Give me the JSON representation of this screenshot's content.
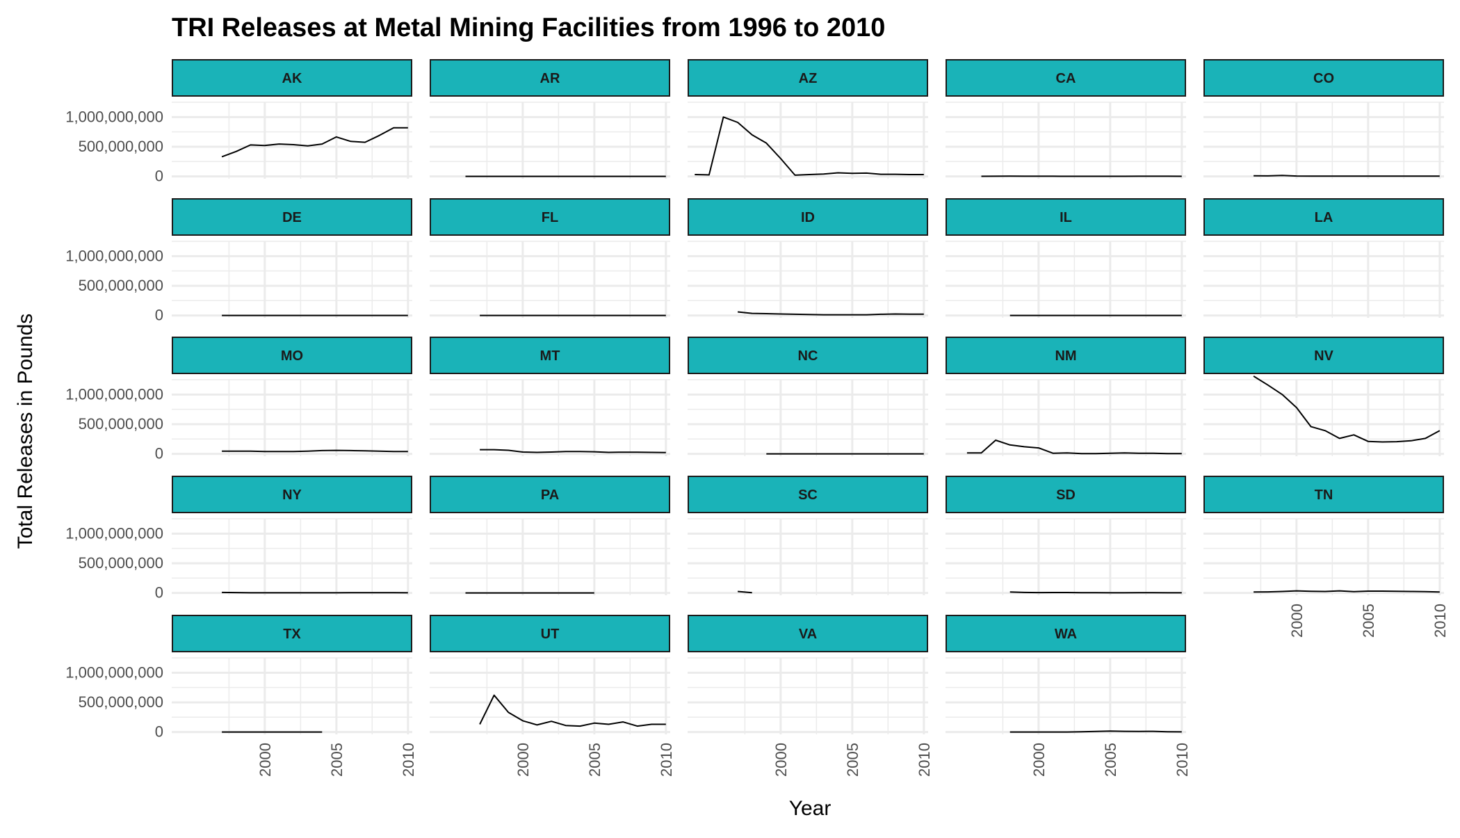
{
  "chart_data": {
    "type": "line",
    "title": "TRI Releases at Metal Mining Facilities from 1996 to 2010",
    "xlabel": "Year",
    "ylabel": "Total Releases in Pounds",
    "xlim": [
      1993.5,
      2010.3
    ],
    "ylim": [
      -40000000,
      1250000000
    ],
    "x_ticks": [
      2000,
      2005,
      2010
    ],
    "x_tick_labels": [
      "2000",
      "2005",
      "2010"
    ],
    "y_ticks": [
      0,
      500000000,
      1000000000
    ],
    "y_tick_labels": [
      "0",
      "500,000,000",
      "1,000,000,000"
    ],
    "grid": true,
    "colors": {
      "strip_fill": "#1ab3b8",
      "strip_border": "#1a1a1a",
      "line": "#000000",
      "grid": "#ebebeb"
    },
    "panels": [
      {
        "label": "AK",
        "x": [
          1997,
          1998,
          1999,
          2000,
          2001,
          2002,
          2003,
          2004,
          2005,
          2006,
          2007,
          2008,
          2009,
          2010
        ],
        "y": [
          330000000,
          420000000,
          530000000,
          520000000,
          545000000,
          535000000,
          515000000,
          545000000,
          665000000,
          590000000,
          575000000,
          690000000,
          820000000,
          820000000
        ]
      },
      {
        "label": "AR",
        "x": [
          1996,
          1997,
          1998,
          1999,
          2000,
          2001,
          2002,
          2003,
          2004,
          2005,
          2006,
          2007,
          2008,
          2009,
          2010
        ],
        "y": [
          0,
          0,
          0,
          0,
          0,
          0,
          0,
          0,
          0,
          0,
          0,
          0,
          0,
          0,
          0
        ]
      },
      {
        "label": "AZ",
        "x": [
          1994,
          1995,
          1996,
          1997,
          1998,
          1999,
          2000,
          2001,
          2002,
          2003,
          2004,
          2005,
          2006,
          2007,
          2008,
          2009,
          2010
        ],
        "y": [
          30000000,
          25000000,
          1000000000,
          910000000,
          700000000,
          560000000,
          300000000,
          20000000,
          30000000,
          40000000,
          60000000,
          50000000,
          55000000,
          35000000,
          35000000,
          30000000,
          30000000
        ]
      },
      {
        "label": "CA",
        "x": [
          1996,
          1997,
          1998,
          1999,
          2000,
          2001,
          2002,
          2003,
          2004,
          2005,
          2006,
          2007,
          2008,
          2009,
          2010
        ],
        "y": [
          1000000,
          2000000,
          3000000,
          2000000,
          2000000,
          2000000,
          1000000,
          1000000,
          1000000,
          1000000,
          1000000,
          2000000,
          2000000,
          2000000,
          1000000
        ]
      },
      {
        "label": "CO",
        "x": [
          1997,
          1998,
          1999,
          2000,
          2001,
          2002,
          2003,
          2004,
          2005,
          2006,
          2007,
          2008,
          2009,
          2010
        ],
        "y": [
          10000000,
          8000000,
          15000000,
          6000000,
          5000000,
          5000000,
          4000000,
          4000000,
          4000000,
          4000000,
          4000000,
          3000000,
          3000000,
          3000000
        ]
      },
      {
        "label": "DE",
        "x": [
          1997,
          1998,
          1999,
          2000,
          2001,
          2002,
          2003,
          2004,
          2005,
          2006,
          2007,
          2008,
          2009,
          2010
        ],
        "y": [
          0,
          0,
          0,
          0,
          0,
          0,
          0,
          0,
          0,
          0,
          0,
          0,
          0,
          0
        ]
      },
      {
        "label": "FL",
        "x": [
          1997,
          1998,
          1999,
          2000,
          2001,
          2002,
          2003,
          2004,
          2005,
          2006,
          2007,
          2008,
          2009,
          2010
        ],
        "y": [
          0,
          0,
          0,
          0,
          0,
          0,
          0,
          0,
          0,
          0,
          0,
          0,
          0,
          0
        ]
      },
      {
        "label": "ID",
        "x": [
          1997,
          1998,
          1999,
          2000,
          2001,
          2002,
          2003,
          2004,
          2005,
          2006,
          2007,
          2008,
          2009,
          2010
        ],
        "y": [
          60000000,
          35000000,
          30000000,
          25000000,
          20000000,
          15000000,
          12000000,
          12000000,
          12000000,
          12000000,
          20000000,
          25000000,
          22000000,
          22000000
        ]
      },
      {
        "label": "IL",
        "x": [
          1998,
          1999,
          2000,
          2001,
          2002,
          2003,
          2004,
          2005,
          2006,
          2007,
          2008,
          2009,
          2010
        ],
        "y": [
          0,
          0,
          0,
          0,
          0,
          0,
          0,
          0,
          0,
          0,
          0,
          0,
          0
        ]
      },
      {
        "label": "LA",
        "x": [],
        "y": []
      },
      {
        "label": "MO",
        "x": [
          1997,
          1998,
          1999,
          2000,
          2001,
          2002,
          2003,
          2004,
          2005,
          2006,
          2007,
          2008,
          2009,
          2010
        ],
        "y": [
          45000000,
          45000000,
          45000000,
          40000000,
          38000000,
          38000000,
          45000000,
          55000000,
          58000000,
          55000000,
          50000000,
          45000000,
          38000000,
          38000000
        ]
      },
      {
        "label": "MT",
        "x": [
          1997,
          1998,
          1999,
          2000,
          2001,
          2002,
          2003,
          2004,
          2005,
          2006,
          2007,
          2008,
          2009,
          2010
        ],
        "y": [
          70000000,
          70000000,
          60000000,
          30000000,
          25000000,
          30000000,
          40000000,
          40000000,
          35000000,
          25000000,
          28000000,
          28000000,
          25000000,
          22000000
        ]
      },
      {
        "label": "NC",
        "x": [
          1999,
          2000,
          2001,
          2002,
          2003,
          2004,
          2005,
          2006,
          2007,
          2008,
          2009,
          2010
        ],
        "y": [
          0,
          0,
          0,
          0,
          0,
          0,
          0,
          0,
          0,
          0,
          0,
          0
        ]
      },
      {
        "label": "NM",
        "x": [
          1995,
          1996,
          1997,
          1998,
          1999,
          2000,
          2001,
          2002,
          2003,
          2004,
          2005,
          2006,
          2007,
          2008,
          2009,
          2010
        ],
        "y": [
          15000000,
          15000000,
          230000000,
          150000000,
          120000000,
          100000000,
          10000000,
          15000000,
          5000000,
          5000000,
          10000000,
          15000000,
          10000000,
          10000000,
          5000000,
          5000000
        ]
      },
      {
        "label": "NV",
        "x": [
          1997,
          1998,
          1999,
          2000,
          2001,
          2002,
          2003,
          2004,
          2005,
          2006,
          2007,
          2008,
          2009,
          2010
        ],
        "y": [
          1310000000,
          1160000000,
          1000000000,
          780000000,
          460000000,
          390000000,
          260000000,
          320000000,
          210000000,
          200000000,
          205000000,
          220000000,
          260000000,
          390000000
        ]
      },
      {
        "label": "NY",
        "x": [
          1997,
          1998,
          1999,
          2000,
          2001,
          2002,
          2003,
          2004,
          2005,
          2006,
          2007,
          2008,
          2009,
          2010
        ],
        "y": [
          8000000,
          6000000,
          2000000,
          2000000,
          2000000,
          2000000,
          2000000,
          2000000,
          2000000,
          3000000,
          4000000,
          5000000,
          4000000,
          2000000
        ]
      },
      {
        "label": "PA",
        "x": [
          1996,
          1997,
          1998,
          1999,
          2000,
          2001,
          2002,
          2003,
          2004,
          2005
        ],
        "y": [
          0,
          0,
          0,
          0,
          0,
          0,
          0,
          0,
          0,
          0
        ]
      },
      {
        "label": "SC",
        "x": [
          1997,
          1998
        ],
        "y": [
          25000000,
          5000000
        ]
      },
      {
        "label": "SD",
        "x": [
          1998,
          1999,
          2000,
          2001,
          2002,
          2003,
          2004,
          2005,
          2006,
          2007,
          2008,
          2009,
          2010
        ],
        "y": [
          15000000,
          8000000,
          6000000,
          7000000,
          7000000,
          5000000,
          3000000,
          2000000,
          2000000,
          3000000,
          3000000,
          2000000,
          2000000
        ]
      },
      {
        "label": "TN",
        "x": [
          1997,
          1998,
          1999,
          2000,
          2001,
          2002,
          2003,
          2004,
          2005,
          2006,
          2007,
          2008,
          2009,
          2010
        ],
        "y": [
          15000000,
          18000000,
          25000000,
          35000000,
          28000000,
          25000000,
          35000000,
          22000000,
          30000000,
          30000000,
          28000000,
          25000000,
          22000000,
          15000000
        ]
      },
      {
        "label": "TX",
        "x": [
          1997,
          1998,
          1999,
          2000,
          2001,
          2002,
          2003,
          2004
        ],
        "y": [
          0,
          0,
          0,
          0,
          0,
          0,
          0,
          0
        ]
      },
      {
        "label": "UT",
        "x": [
          1997,
          1998,
          1999,
          2000,
          2001,
          2002,
          2003,
          2004,
          2005,
          2006,
          2007,
          2008,
          2009,
          2010
        ],
        "y": [
          130000000,
          620000000,
          330000000,
          190000000,
          120000000,
          180000000,
          110000000,
          100000000,
          150000000,
          130000000,
          170000000,
          100000000,
          130000000,
          130000000
        ]
      },
      {
        "label": "VA",
        "x": [],
        "y": []
      },
      {
        "label": "WA",
        "x": [
          1998,
          1999,
          2000,
          2001,
          2002,
          2003,
          2004,
          2005,
          2006,
          2007,
          2008,
          2009,
          2010
        ],
        "y": [
          0,
          0,
          0,
          0,
          0,
          5000000,
          10000000,
          15000000,
          12000000,
          10000000,
          12000000,
          5000000,
          2000000
        ]
      }
    ]
  }
}
